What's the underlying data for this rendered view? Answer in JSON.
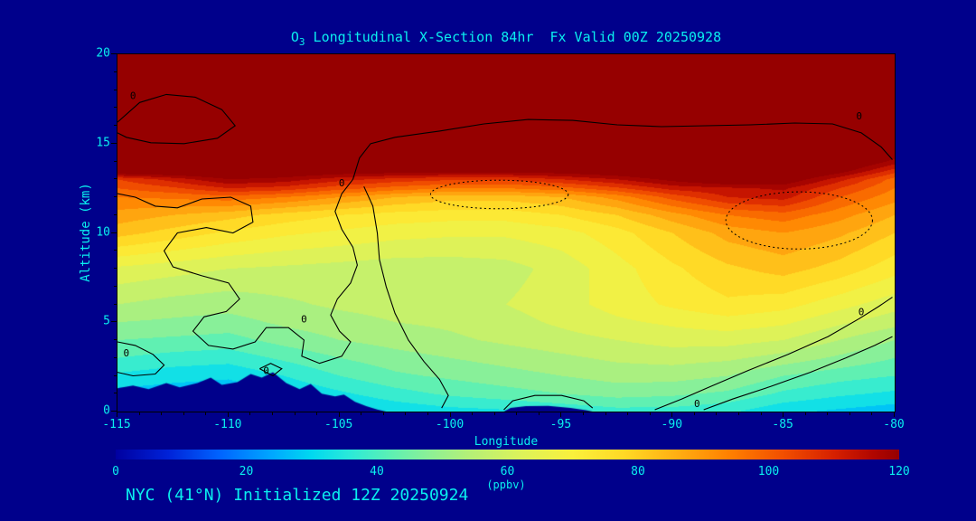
{
  "colors": {
    "background": "#00008B",
    "text_cyan": "#0AEFEF",
    "contour": "#000000"
  },
  "title": {
    "prefix": "O",
    "sub": "3",
    "rest": " Longitudinal X-Section 84hr  Fx Valid 00Z 20250928"
  },
  "footer": {
    "text": "NYC (41°N) Initialized 12Z 20250924"
  },
  "chart_data": {
    "type": "heatmap",
    "title": "O3 Longitudinal X-Section 84hr Fx Valid 00Z 20250928",
    "xlabel": "Longitude",
    "ylabel": "Altitude (km)",
    "colorbar_label": "(ppbv)",
    "xlim": [
      -115,
      -80
    ],
    "ylim": [
      0,
      20
    ],
    "x_ticks": [
      -115,
      -110,
      -105,
      -100,
      -95,
      -90,
      -85,
      -80
    ],
    "y_ticks": [
      0,
      5,
      10,
      15,
      20
    ],
    "colorbar_ticks": [
      0,
      20,
      40,
      60,
      80,
      100,
      120
    ],
    "colorbar_range": [
      0,
      120
    ],
    "band_interval": 5,
    "colormap": [
      [
        0,
        "#0000A0"
      ],
      [
        8,
        "#0022D8"
      ],
      [
        16,
        "#0064FF"
      ],
      [
        24,
        "#00A8FF"
      ],
      [
        30,
        "#00D8F0"
      ],
      [
        36,
        "#2CEAD8"
      ],
      [
        42,
        "#5CF0B4"
      ],
      [
        48,
        "#8CF096"
      ],
      [
        54,
        "#B4F078"
      ],
      [
        62,
        "#DCF25A"
      ],
      [
        70,
        "#FAF03C"
      ],
      [
        78,
        "#FFD825"
      ],
      [
        86,
        "#FFAE12"
      ],
      [
        94,
        "#FF8000"
      ],
      [
        102,
        "#F25000"
      ],
      [
        110,
        "#D62000"
      ],
      [
        116,
        "#B00600"
      ],
      [
        120,
        "#960000"
      ]
    ],
    "lons": [
      -115,
      -112.5,
      -110,
      -107.5,
      -105,
      -102.5,
      -100,
      -97.5,
      -95,
      -92.5,
      -90,
      -87.5,
      -85,
      -82.5,
      -80
    ],
    "alts": [
      0,
      1,
      2,
      3,
      4,
      5,
      6,
      8,
      10,
      11,
      12,
      12.5,
      13,
      13.5,
      14,
      16,
      20
    ],
    "values": [
      [
        22,
        21,
        20,
        24,
        28,
        31,
        33,
        34,
        36,
        38,
        38,
        36,
        31,
        29,
        27
      ],
      [
        28,
        27,
        26,
        30,
        34,
        38,
        41,
        43,
        45,
        47,
        46,
        44,
        39,
        36,
        34
      ],
      [
        34,
        32,
        31,
        35,
        40,
        44,
        46,
        48,
        50,
        52,
        52,
        50,
        45,
        42,
        40
      ],
      [
        40,
        38,
        37,
        41,
        45,
        48,
        50,
        52,
        54,
        56,
        57,
        56,
        53,
        49,
        45
      ],
      [
        45,
        44,
        43,
        47,
        50,
        52,
        54,
        56,
        58,
        60,
        62,
        62,
        60,
        55,
        50
      ],
      [
        50,
        49,
        48,
        51,
        53,
        55,
        56,
        58,
        61,
        64,
        66,
        68,
        66,
        61,
        57
      ],
      [
        55,
        53,
        52,
        54,
        56,
        57,
        58,
        60,
        63,
        67,
        71,
        74,
        72,
        67,
        62
      ],
      [
        64,
        62,
        60,
        59,
        58,
        57,
        57,
        58,
        62,
        68,
        74,
        79,
        82,
        78,
        72
      ],
      [
        82,
        78,
        74,
        71,
        69,
        67,
        66,
        66,
        68,
        73,
        80,
        87,
        90,
        86,
        80
      ],
      [
        88,
        85,
        82,
        78,
        75,
        73,
        72,
        72,
        75,
        80,
        88,
        95,
        98,
        92,
        85
      ],
      [
        95,
        96,
        98,
        95,
        90,
        85,
        82,
        82,
        85,
        92,
        102,
        110,
        112,
        100,
        92
      ],
      [
        100,
        104,
        110,
        108,
        102,
        98,
        95,
        95,
        98,
        104,
        112,
        114,
        116,
        105,
        95
      ],
      [
        105,
        112,
        120,
        118,
        112,
        108,
        106,
        106,
        110,
        115,
        122,
        128,
        126,
        112,
        98
      ],
      [
        130,
        130,
        130,
        128,
        126,
        125,
        124,
        124,
        125,
        128,
        132,
        135,
        134,
        124,
        108
      ],
      [
        138,
        138,
        138,
        136,
        135,
        134,
        134,
        134,
        135,
        136,
        138,
        140,
        140,
        132,
        118
      ],
      [
        150,
        150,
        150,
        150,
        150,
        150,
        150,
        150,
        150,
        150,
        150,
        150,
        150,
        150,
        145
      ],
      [
        150,
        150,
        150,
        150,
        150,
        150,
        150,
        150,
        150,
        150,
        150,
        150,
        150,
        150,
        150
      ]
    ],
    "terrain": [
      [
        [
          -115,
          1.3
        ],
        [
          -114.3,
          1.45
        ],
        [
          -113.6,
          1.25
        ],
        [
          -112.8,
          1.6
        ],
        [
          -112.2,
          1.35
        ],
        [
          -111.4,
          1.6
        ],
        [
          -110.8,
          1.9
        ],
        [
          -110.3,
          1.5
        ],
        [
          -109.6,
          1.65
        ],
        [
          -109.0,
          2.1
        ],
        [
          -108.5,
          1.9
        ],
        [
          -108.0,
          2.2
        ],
        [
          -107.4,
          1.6
        ],
        [
          -106.8,
          1.25
        ],
        [
          -106.3,
          1.55
        ],
        [
          -105.8,
          1.0
        ],
        [
          -105.2,
          0.85
        ],
        [
          -104.8,
          0.95
        ],
        [
          -104.3,
          0.55
        ],
        [
          -103.8,
          0.3
        ],
        [
          -103.3,
          0.12
        ],
        [
          -102.9,
          0
        ],
        [
          -115,
          0
        ]
      ],
      [
        [
          -97.6,
          0
        ],
        [
          -97.3,
          0.2
        ],
        [
          -96.6,
          0.3
        ],
        [
          -95.6,
          0.32
        ],
        [
          -94.6,
          0.2
        ],
        [
          -93.9,
          0.08
        ],
        [
          -93.6,
          0
        ]
      ]
    ],
    "contours": {
      "solid": [
        [
          [
            -115,
            16.2
          ],
          [
            -114,
            17.3
          ],
          [
            -112.8,
            17.75
          ],
          [
            -111.5,
            17.6
          ],
          [
            -110.3,
            16.9
          ],
          [
            -109.7,
            16.0
          ],
          [
            -110.5,
            15.3
          ],
          [
            -112,
            15.0
          ],
          [
            -113.5,
            15.05
          ],
          [
            -114.6,
            15.35
          ],
          [
            -115,
            15.6
          ]
        ],
        [
          [
            -104.4,
            13.0
          ],
          [
            -104.1,
            14.2
          ],
          [
            -103.6,
            15.0
          ],
          [
            -102.5,
            15.35
          ],
          [
            -100.5,
            15.7
          ],
          [
            -98.5,
            16.1
          ],
          [
            -96.5,
            16.35
          ],
          [
            -94.5,
            16.3
          ],
          [
            -92.5,
            16.05
          ],
          [
            -90.5,
            15.95
          ],
          [
            -88.5,
            16.0
          ],
          [
            -86.5,
            16.05
          ],
          [
            -84.5,
            16.15
          ],
          [
            -82.8,
            16.1
          ],
          [
            -81.5,
            15.6
          ],
          [
            -80.6,
            14.8
          ],
          [
            -80.1,
            14.1
          ]
        ],
        [
          [
            -104.4,
            13.0
          ],
          [
            -104.9,
            12.2
          ],
          [
            -105.2,
            11.2
          ],
          [
            -104.9,
            10.2
          ],
          [
            -104.4,
            9.2
          ],
          [
            -104.2,
            8.2
          ],
          [
            -104.5,
            7.2
          ],
          [
            -105.1,
            6.3
          ],
          [
            -105.4,
            5.4
          ],
          [
            -105.0,
            4.5
          ],
          [
            -104.5,
            3.9
          ],
          [
            -104.9,
            3.1
          ],
          [
            -105.9,
            2.7
          ],
          [
            -106.7,
            3.1
          ],
          [
            -106.6,
            4.0
          ],
          [
            -107.3,
            4.7
          ],
          [
            -108.3,
            4.7
          ],
          [
            -108.8,
            3.9
          ],
          [
            -109.8,
            3.5
          ],
          [
            -110.9,
            3.7
          ],
          [
            -111.6,
            4.5
          ],
          [
            -111.1,
            5.3
          ],
          [
            -110.1,
            5.6
          ],
          [
            -109.5,
            6.3
          ],
          [
            -110.0,
            7.2
          ],
          [
            -111.2,
            7.6
          ],
          [
            -112.5,
            8.1
          ],
          [
            -112.9,
            9.0
          ],
          [
            -112.3,
            10.0
          ],
          [
            -111.0,
            10.3
          ],
          [
            -109.8,
            10.0
          ],
          [
            -108.9,
            10.6
          ],
          [
            -109.0,
            11.5
          ],
          [
            -109.9,
            12.0
          ],
          [
            -111.2,
            11.9
          ],
          [
            -112.3,
            11.4
          ],
          [
            -113.3,
            11.5
          ],
          [
            -114.2,
            12.0
          ],
          [
            -115,
            12.2
          ]
        ],
        [
          [
            -103.9,
            12.6
          ],
          [
            -103.5,
            11.5
          ],
          [
            -103.3,
            10.0
          ],
          [
            -103.2,
            8.5
          ],
          [
            -102.9,
            7.0
          ],
          [
            -102.5,
            5.5
          ],
          [
            -101.9,
            4.0
          ],
          [
            -101.2,
            2.8
          ],
          [
            -100.5,
            1.8
          ],
          [
            -100.1,
            0.9
          ],
          [
            -100.4,
            0.2
          ]
        ],
        [
          [
            -115,
            3.9
          ],
          [
            -114.2,
            3.7
          ],
          [
            -113.4,
            3.2
          ],
          [
            -112.9,
            2.6
          ],
          [
            -113.3,
            2.1
          ],
          [
            -114.3,
            2.0
          ],
          [
            -115,
            2.2
          ]
        ],
        [
          [
            -108.6,
            2.4
          ],
          [
            -108.1,
            2.7
          ],
          [
            -107.6,
            2.4
          ],
          [
            -108.0,
            2.0
          ],
          [
            -108.6,
            2.4
          ]
        ],
        [
          [
            -97.6,
            0.1
          ],
          [
            -97.2,
            0.6
          ],
          [
            -96.2,
            0.9
          ],
          [
            -95.0,
            0.9
          ],
          [
            -94.0,
            0.6
          ],
          [
            -93.6,
            0.2
          ]
        ],
        [
          [
            -90.8,
            0.1
          ],
          [
            -89.6,
            0.7
          ],
          [
            -88.3,
            1.4
          ],
          [
            -86.6,
            2.3
          ],
          [
            -84.8,
            3.2
          ],
          [
            -83.0,
            4.2
          ],
          [
            -81.6,
            5.2
          ],
          [
            -80.7,
            5.9
          ],
          [
            -80.1,
            6.4
          ]
        ],
        [
          [
            -88.6,
            0.1
          ],
          [
            -87.3,
            0.7
          ],
          [
            -85.6,
            1.4
          ],
          [
            -83.8,
            2.2
          ],
          [
            -82.2,
            3.0
          ],
          [
            -80.9,
            3.7
          ],
          [
            -80.1,
            4.2
          ]
        ]
      ],
      "dotted_ellipses": [
        {
          "cx": -97.8,
          "cy": 12.15,
          "rx": 3.1,
          "ry": 0.8
        },
        {
          "cx": -84.3,
          "cy": 10.7,
          "rx": 3.3,
          "ry": 1.6
        }
      ],
      "zero_labels": [
        {
          "lon": -114.3,
          "alt": 17.7,
          "text": "0"
        },
        {
          "lon": -81.6,
          "alt": 16.55,
          "text": "0"
        },
        {
          "lon": -104.9,
          "alt": 12.8,
          "text": "0"
        },
        {
          "lon": -106.6,
          "alt": 5.2,
          "text": "0"
        },
        {
          "lon": -114.6,
          "alt": 3.3,
          "text": "0"
        },
        {
          "lon": -108.3,
          "alt": 2.3,
          "text": "0"
        },
        {
          "lon": -88.9,
          "alt": 0.45,
          "text": "0"
        },
        {
          "lon": -81.5,
          "alt": 5.6,
          "text": "0"
        }
      ]
    }
  }
}
